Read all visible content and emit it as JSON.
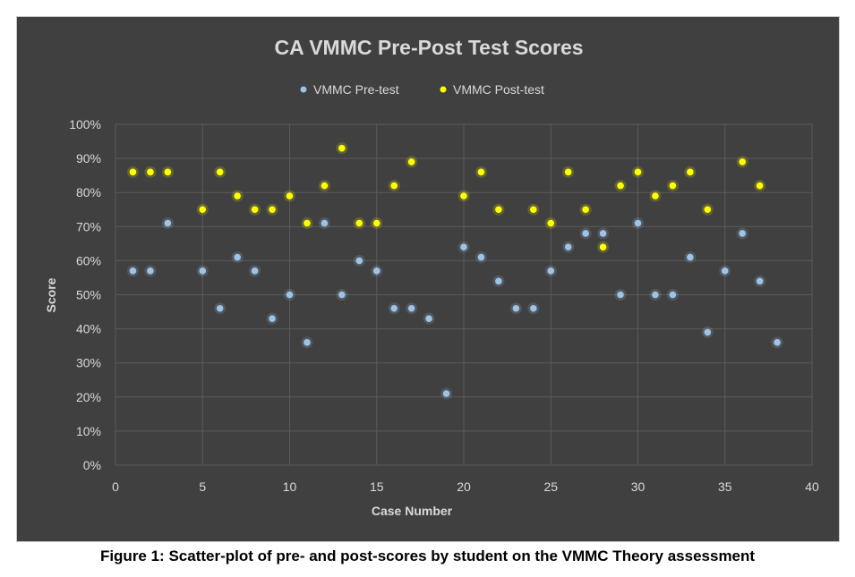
{
  "caption": "Figure 1: Scatter-plot of pre- and post-scores by student on the VMMC Theory assessment",
  "chart_data": {
    "type": "scatter",
    "title": "CA VMMC Pre-Post Test Scores",
    "xlabel": "Case Number",
    "ylabel": "Score",
    "xlim": [
      0,
      40
    ],
    "ylim": [
      0,
      100
    ],
    "x_ticks": [
      0,
      5,
      10,
      15,
      20,
      25,
      30,
      35,
      40
    ],
    "y_ticks": [
      "0%",
      "10%",
      "20%",
      "30%",
      "40%",
      "50%",
      "60%",
      "70%",
      "80%",
      "90%",
      "100%"
    ],
    "grid": true,
    "legend_position": "top",
    "background_color": "#404040",
    "gridline_color": "#5a5a5a",
    "series": [
      {
        "name": "VMMC Pre-test",
        "color": "#9dc3e6",
        "points": [
          [
            1,
            57
          ],
          [
            2,
            57
          ],
          [
            3,
            71
          ],
          [
            5,
            57
          ],
          [
            6,
            46
          ],
          [
            7,
            61
          ],
          [
            8,
            57
          ],
          [
            9,
            43
          ],
          [
            10,
            50
          ],
          [
            11,
            36
          ],
          [
            12,
            71
          ],
          [
            13,
            50
          ],
          [
            14,
            60
          ],
          [
            15,
            57
          ],
          [
            16,
            46
          ],
          [
            17,
            46
          ],
          [
            18,
            43
          ],
          [
            19,
            21
          ],
          [
            20,
            64
          ],
          [
            21,
            61
          ],
          [
            22,
            54
          ],
          [
            23,
            46
          ],
          [
            24,
            46
          ],
          [
            25,
            57
          ],
          [
            26,
            64
          ],
          [
            27,
            68
          ],
          [
            28,
            68
          ],
          [
            29,
            50
          ],
          [
            30,
            71
          ],
          [
            31,
            50
          ],
          [
            32,
            50
          ],
          [
            33,
            61
          ],
          [
            34,
            39
          ],
          [
            35,
            57
          ],
          [
            36,
            68
          ],
          [
            37,
            54
          ],
          [
            38,
            36
          ]
        ]
      },
      {
        "name": "VMMC Post-test",
        "color": "#ffff00",
        "points": [
          [
            1,
            86
          ],
          [
            2,
            86
          ],
          [
            3,
            86
          ],
          [
            5,
            75
          ],
          [
            6,
            86
          ],
          [
            7,
            79
          ],
          [
            8,
            75
          ],
          [
            9,
            75
          ],
          [
            10,
            79
          ],
          [
            11,
            71
          ],
          [
            12,
            82
          ],
          [
            13,
            93
          ],
          [
            14,
            71
          ],
          [
            15,
            71
          ],
          [
            16,
            82
          ],
          [
            17,
            89
          ],
          [
            20,
            79
          ],
          [
            21,
            86
          ],
          [
            22,
            75
          ],
          [
            24,
            75
          ],
          [
            25,
            71
          ],
          [
            26,
            86
          ],
          [
            27,
            75
          ],
          [
            28,
            64
          ],
          [
            29,
            82
          ],
          [
            30,
            86
          ],
          [
            31,
            79
          ],
          [
            32,
            82
          ],
          [
            33,
            86
          ],
          [
            34,
            75
          ],
          [
            36,
            89
          ],
          [
            37,
            82
          ]
        ]
      }
    ]
  }
}
